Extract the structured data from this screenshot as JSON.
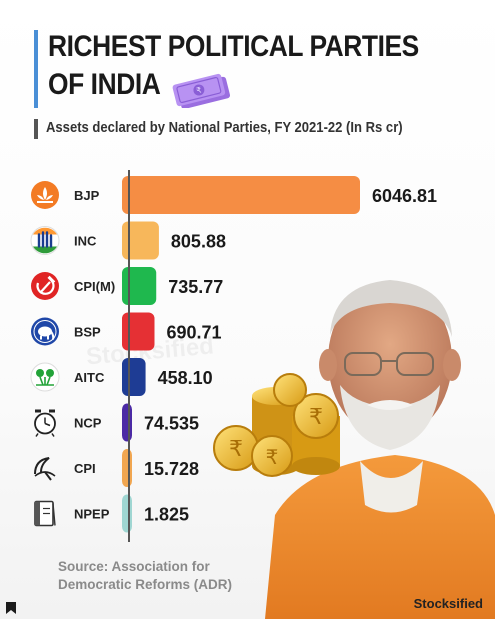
{
  "header": {
    "title_line1": "RICHEST POLITICAL PARTIES",
    "title_line2": "OF INDIA",
    "subtitle": "Assets declared by National Parties, FY 2021-22 (In Rs cr)"
  },
  "footer": {
    "source_line1": "Source: Association for",
    "source_line2": "Democratic Reforms (ADR)",
    "brand": "Stocksified",
    "watermark": "Stocksified"
  },
  "colors": {
    "BJP": "#f58d44",
    "INC": "#f7b75b",
    "CPI(M)": "#1fb84e",
    "BSP": "#e53034",
    "AITC": "#1e3c94",
    "NCP": "#4b2aa5",
    "CPI": "#f1a650",
    "NPEP": "#9fd6d2"
  },
  "icons": [
    "lotus-icon",
    "hand-icon",
    "hammer-sickle-icon",
    "elephant-icon",
    "flowers-icon",
    "clock-icon",
    "sickle-icon",
    "book-icon"
  ],
  "chart_data": {
    "type": "bar",
    "orientation": "horizontal",
    "title": "RICHEST POLITICAL PARTIES OF INDIA",
    "subtitle": "Assets declared by National Parties, FY 2021-22 (In Rs cr)",
    "categories": [
      "BJP",
      "INC",
      "CPI(M)",
      "BSP",
      "AITC",
      "NCP",
      "CPI",
      "NPEP"
    ],
    "values": [
      6046.81,
      805.88,
      735.77,
      690.71,
      458.1,
      74.535,
      15.728,
      1.825
    ],
    "value_labels": [
      "6046.81",
      "805.88",
      "735.77",
      "690.71",
      "458.10",
      "74.535",
      "15.728",
      "1.825"
    ],
    "grid": false,
    "legend": "none"
  }
}
